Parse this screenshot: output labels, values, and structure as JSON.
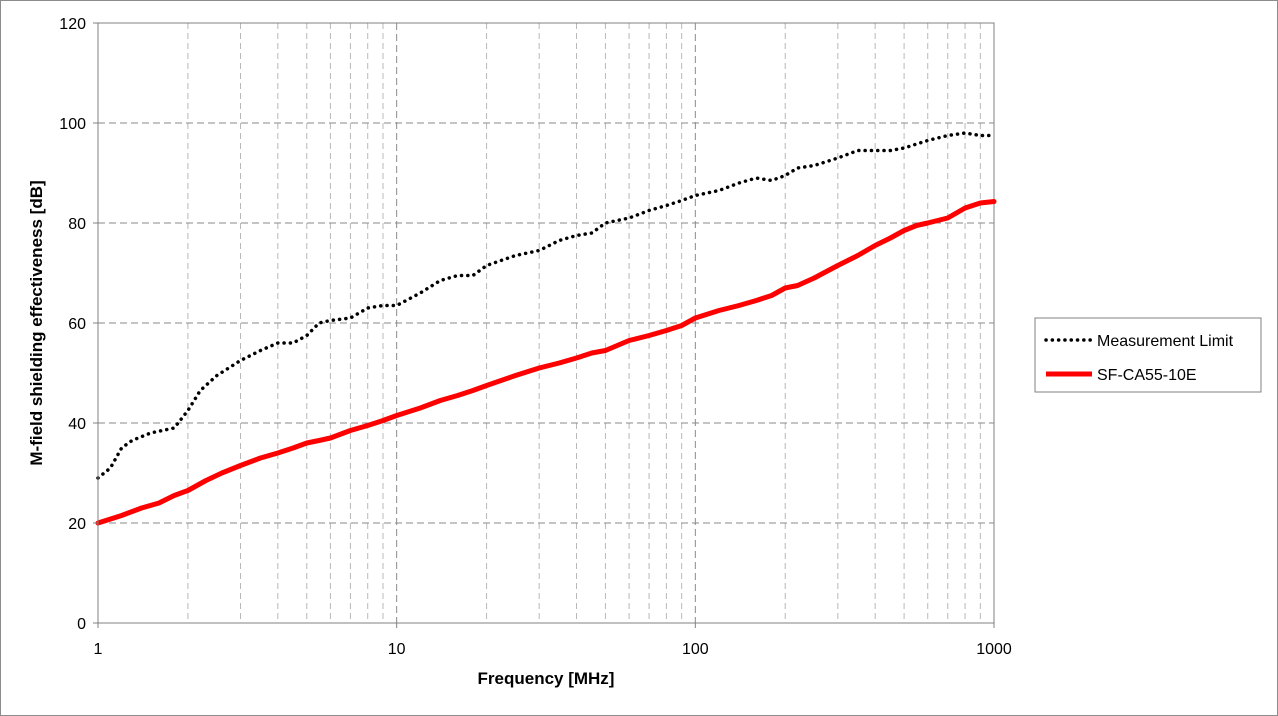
{
  "chart_data": {
    "type": "line",
    "xlabel": "Frequency [MHz]",
    "ylabel": "M-field shielding effectiveness [dB]",
    "x_scale": "log",
    "xlim": [
      1,
      1000
    ],
    "ylim": [
      0,
      120
    ],
    "x_ticks": [
      "1",
      "10",
      "100",
      "1000"
    ],
    "y_ticks": [
      "0",
      "20",
      "40",
      "60",
      "80",
      "100",
      "120"
    ],
    "grid": true,
    "legend_position": "right",
    "series": [
      {
        "name": "Measurement Limit",
        "color": "#000000",
        "style": "dotted",
        "x": [
          1,
          1.1,
          1.2,
          1.3,
          1.5,
          1.8,
          2,
          2.2,
          2.5,
          3,
          3.5,
          4,
          4.5,
          5,
          5.5,
          6,
          7,
          8,
          9,
          10,
          12,
          14,
          16,
          18,
          20,
          25,
          30,
          35,
          40,
          45,
          50,
          60,
          70,
          80,
          90,
          100,
          120,
          140,
          160,
          180,
          200,
          220,
          250,
          300,
          350,
          400,
          450,
          500,
          600,
          700,
          800,
          900,
          1000
        ],
        "y": [
          29,
          31,
          35,
          36.5,
          38,
          39,
          42.5,
          46.5,
          49.5,
          52.5,
          54.5,
          56,
          56,
          57.5,
          60,
          60.5,
          61,
          63,
          63.5,
          63.5,
          66,
          68.5,
          69.5,
          69.5,
          71.5,
          73.5,
          74.5,
          76.5,
          77.5,
          78,
          80,
          81,
          82.5,
          83.5,
          84.5,
          85.5,
          86.5,
          88,
          89,
          88.5,
          89.5,
          91,
          91.5,
          93,
          94.5,
          94.5,
          94.5,
          95,
          96.5,
          97.5,
          98,
          97.5,
          97.5
        ]
      },
      {
        "name": "SF-CA55-10E",
        "color": "#ff0000",
        "style": "solid",
        "x": [
          1,
          1.2,
          1.4,
          1.6,
          1.8,
          2,
          2.3,
          2.6,
          3,
          3.5,
          4,
          4.5,
          5,
          5.5,
          6,
          7,
          8,
          9,
          10,
          12,
          14,
          16,
          18,
          20,
          25,
          30,
          35,
          40,
          45,
          50,
          60,
          70,
          80,
          90,
          100,
          120,
          140,
          160,
          180,
          200,
          220,
          250,
          300,
          350,
          400,
          450,
          500,
          550,
          600,
          700,
          800,
          900,
          1000
        ],
        "y": [
          20,
          21.5,
          23,
          24,
          25.5,
          26.5,
          28.5,
          30,
          31.5,
          33,
          34,
          35,
          36,
          36.5,
          37,
          38.5,
          39.5,
          40.5,
          41.5,
          43,
          44.5,
          45.5,
          46.5,
          47.5,
          49.5,
          51,
          52,
          53,
          54,
          54.5,
          56.5,
          57.5,
          58.5,
          59.5,
          61,
          62.5,
          63.5,
          64.5,
          65.5,
          67,
          67.5,
          69,
          71.5,
          73.5,
          75.5,
          77,
          78.5,
          79.5,
          80,
          81,
          83,
          84,
          84.3
        ]
      }
    ]
  }
}
